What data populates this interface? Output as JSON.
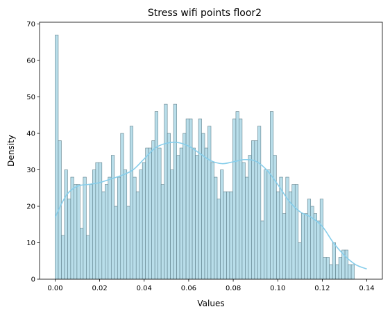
{
  "chart_data": {
    "type": "bar",
    "title": "Stress wifi points floor2",
    "xlabel": "Values",
    "ylabel": "Density",
    "xlim": [
      -0.007,
      0.147
    ],
    "ylim": [
      0,
      70.5
    ],
    "x_ticks": [
      0.0,
      0.02,
      0.04,
      0.06,
      0.08,
      0.1,
      0.12,
      0.14
    ],
    "x_tick_labels": [
      "0.00",
      "0.02",
      "0.04",
      "0.06",
      "0.08",
      "0.10",
      "0.12",
      "0.14"
    ],
    "y_ticks": [
      0,
      10,
      20,
      30,
      40,
      50,
      60,
      70
    ],
    "y_tick_labels": [
      "0",
      "10",
      "20",
      "30",
      "40",
      "50",
      "60",
      "70"
    ],
    "grid": false,
    "bin_start": 0.0,
    "bin_width": 0.0014,
    "values": [
      67,
      38,
      12,
      30,
      22,
      28,
      26,
      26,
      14,
      28,
      12,
      26,
      30,
      32,
      32,
      24,
      26,
      28,
      34,
      20,
      28,
      40,
      30,
      20,
      42,
      28,
      24,
      30,
      32,
      36,
      36,
      38,
      46,
      36,
      26,
      48,
      40,
      30,
      48,
      34,
      36,
      40,
      44,
      44,
      36,
      34,
      44,
      40,
      36,
      42,
      32,
      28,
      22,
      30,
      24,
      24,
      24,
      44,
      46,
      44,
      32,
      28,
      34,
      38,
      38,
      42,
      16,
      30,
      30,
      46,
      34,
      24,
      28,
      18,
      28,
      24,
      26,
      26,
      10,
      18,
      18,
      22,
      20,
      18,
      16,
      22,
      6,
      6,
      4,
      10,
      4,
      6,
      8,
      8,
      4,
      4
    ],
    "kde": {
      "x": [
        0.0,
        0.005,
        0.01,
        0.015,
        0.02,
        0.025,
        0.03,
        0.035,
        0.04,
        0.045,
        0.05,
        0.055,
        0.06,
        0.065,
        0.07,
        0.075,
        0.08,
        0.085,
        0.09,
        0.095,
        0.1,
        0.105,
        0.11,
        0.115,
        0.12,
        0.125,
        0.13,
        0.135,
        0.14
      ],
      "y": [
        17,
        23,
        25.5,
        26,
        26.5,
        27.5,
        28.5,
        30,
        33,
        36,
        37.3,
        37.5,
        36.5,
        34.5,
        32.5,
        31.7,
        32.2,
        32.8,
        32.4,
        30,
        26,
        21.5,
        18.5,
        17,
        14.5,
        10,
        6.5,
        4,
        2.8
      ]
    },
    "colors": {
      "bar_fill": "#add8e6",
      "bar_edge": "#5f7f8a",
      "kde_line": "#87ceeb",
      "axis": "#000000"
    }
  }
}
